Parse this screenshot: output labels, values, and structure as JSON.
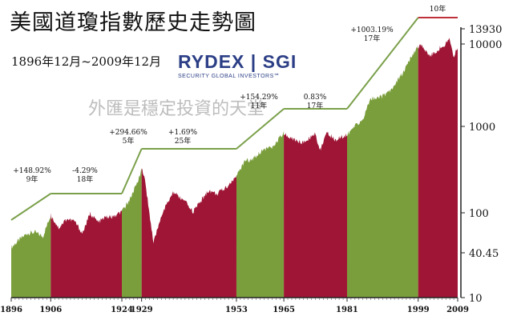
{
  "title": "美國道瓊指數歷史走勢圖",
  "subtitle": "1896年12月~2009年12月",
  "watermark": "外匯是穩定投資的天堂",
  "logo": {
    "brand": "RYDEX | SGI",
    "tagline": "SECURITY GLOBAL INVESTORS℠"
  },
  "colors": {
    "bull": "#7a9e3c",
    "bear": "#9e1535",
    "trend": "#7aa04a",
    "bracket": "#c0303a"
  },
  "chart_data": {
    "type": "area",
    "title": "美國道瓊指數歷史走勢圖",
    "y_scale": "log",
    "ylim": [
      10,
      13930
    ],
    "y_ticks": [
      "13930",
      "10000",
      "1000",
      "100",
      "40.45",
      "10"
    ],
    "x_ticks": [
      "1896",
      "1906",
      "1924",
      "1929",
      "1953",
      "1965",
      "1981",
      "1999",
      "2009"
    ],
    "periods": [
      {
        "start": 1896,
        "end": 1906,
        "phase": "bull",
        "change": "+148.92%",
        "years": "9年"
      },
      {
        "start": 1906,
        "end": 1924,
        "phase": "bear",
        "change": "-4.29%",
        "years": "18年"
      },
      {
        "start": 1924,
        "end": 1929,
        "phase": "bull",
        "change": "+294.66%",
        "years": "5年"
      },
      {
        "start": 1929,
        "end": 1953,
        "phase": "bear",
        "change": "+1.69%",
        "years": "25年"
      },
      {
        "start": 1953,
        "end": 1965,
        "phase": "bull",
        "change": "+154.29%",
        "years": "11年"
      },
      {
        "start": 1965,
        "end": 1981,
        "phase": "bear",
        "change": "0.83%",
        "years": "17年"
      },
      {
        "start": 1981,
        "end": 1999,
        "phase": "bull",
        "change": "+1003.19%",
        "years": "17年"
      },
      {
        "start": 1999,
        "end": 2009,
        "phase": "bear",
        "change": "",
        "years": "10年"
      }
    ],
    "series": [
      {
        "x": [
          1896,
          1898,
          1900,
          1902,
          1904,
          1906,
          1908,
          1910,
          1912,
          1914,
          1916,
          1918,
          1920,
          1922,
          1924,
          1926,
          1928,
          1929,
          1930,
          1932,
          1934,
          1937,
          1940,
          1942,
          1946,
          1948,
          1950,
          1953,
          1955,
          1957,
          1960,
          1962,
          1965,
          1966,
          1970,
          1973,
          1974,
          1976,
          1978,
          1981,
          1983,
          1985,
          1987,
          1990,
          1992,
          1995,
          1997,
          1999,
          2000,
          2002,
          2003,
          2006,
          2007,
          2008,
          2009
        ],
        "y": [
          40.45,
          50,
          60,
          62,
          55,
          100,
          70,
          90,
          85,
          60,
          105,
          82,
          95,
          95,
          110,
          155,
          250,
          381,
          240,
          45,
          100,
          190,
          145,
          110,
          200,
          180,
          210,
          290,
          450,
          480,
          640,
          650,
          990,
          880,
          750,
          1000,
          600,
          1000,
          810,
          950,
          1200,
          1450,
          2600,
          2750,
          3300,
          5200,
          7800,
          11000,
          11500,
          8500,
          9300,
          12000,
          13930,
          8500,
          10400
        ]
      }
    ]
  }
}
